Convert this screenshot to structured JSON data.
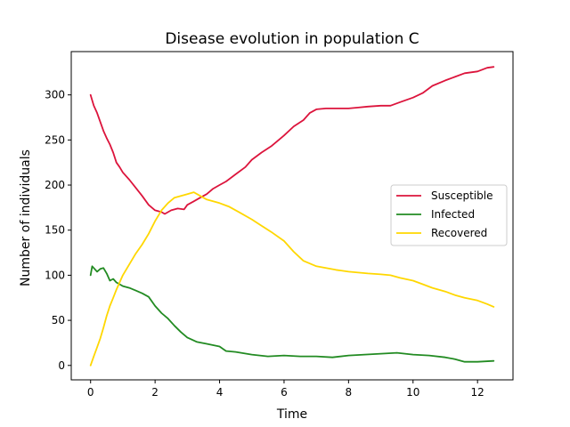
{
  "chart_data": {
    "type": "line",
    "title": "Disease evolution in population C",
    "xlabel": "Time",
    "ylabel": "Number of individuals",
    "xlim": [
      -0.6,
      13.1
    ],
    "ylim": [
      -16,
      348
    ],
    "xticks": [
      0,
      2,
      4,
      6,
      8,
      10,
      12
    ],
    "yticks": [
      0,
      50,
      100,
      150,
      200,
      250,
      300
    ],
    "grid": false,
    "legend_position": "center-right",
    "series": [
      {
        "name": "Susceptible",
        "color": "#dc143c",
        "x": [
          0,
          0.1,
          0.2,
          0.3,
          0.4,
          0.5,
          0.6,
          0.7,
          0.8,
          0.9,
          1.0,
          1.2,
          1.4,
          1.6,
          1.8,
          2.0,
          2.2,
          2.3,
          2.5,
          2.7,
          2.9,
          3.0,
          3.2,
          3.4,
          3.6,
          3.8,
          4.0,
          4.2,
          4.5,
          4.8,
          5.0,
          5.3,
          5.6,
          6.0,
          6.3,
          6.6,
          6.8,
          7.0,
          7.3,
          7.6,
          8.0,
          8.3,
          8.6,
          9.0,
          9.3,
          9.6,
          10.0,
          10.3,
          10.6,
          11.0,
          11.3,
          11.6,
          12.0,
          12.3,
          12.5
        ],
        "y": [
          300,
          288,
          280,
          270,
          260,
          252,
          245,
          236,
          225,
          220,
          214,
          206,
          197,
          188,
          178,
          172,
          170,
          168,
          172,
          174,
          173,
          178,
          182,
          186,
          190,
          196,
          200,
          204,
          212,
          220,
          228,
          236,
          243,
          255,
          265,
          272,
          280,
          284,
          285,
          285,
          285,
          286,
          287,
          288,
          288,
          292,
          297,
          302,
          310,
          316,
          320,
          324,
          326,
          330,
          331
        ]
      },
      {
        "name": "Infected",
        "color": "#228b22",
        "x": [
          0,
          0.05,
          0.1,
          0.2,
          0.3,
          0.4,
          0.5,
          0.6,
          0.7,
          0.8,
          0.9,
          1.0,
          1.2,
          1.4,
          1.6,
          1.8,
          2.0,
          2.2,
          2.4,
          2.6,
          2.8,
          3.0,
          3.3,
          3.6,
          4.0,
          4.2,
          4.5,
          5.0,
          5.5,
          6.0,
          6.5,
          7.0,
          7.5,
          8.0,
          8.5,
          9.0,
          9.5,
          10.0,
          10.5,
          11.0,
          11.3,
          11.6,
          12.0,
          12.5
        ],
        "y": [
          100,
          110,
          108,
          104,
          107,
          108,
          102,
          94,
          96,
          92,
          90,
          88,
          86,
          83,
          80,
          76,
          66,
          58,
          52,
          44,
          37,
          31,
          26,
          24,
          21,
          16,
          15,
          12,
          10,
          11,
          10,
          10,
          9,
          11,
          12,
          13,
          14,
          12,
          11,
          9,
          7,
          4,
          4,
          5
        ]
      },
      {
        "name": "Recovered",
        "color": "#ffd700",
        "x": [
          0,
          0.1,
          0.2,
          0.3,
          0.4,
          0.5,
          0.6,
          0.7,
          0.8,
          0.9,
          1.0,
          1.2,
          1.4,
          1.6,
          1.8,
          2.0,
          2.2,
          2.4,
          2.6,
          2.8,
          3.0,
          3.2,
          3.4,
          3.6,
          3.8,
          4.0,
          4.3,
          4.6,
          5.0,
          5.3,
          5.6,
          6.0,
          6.3,
          6.6,
          7.0,
          7.3,
          7.6,
          8.0,
          8.3,
          8.6,
          9.0,
          9.3,
          9.6,
          10.0,
          10.3,
          10.6,
          11.0,
          11.3,
          11.6,
          12.0,
          12.3,
          12.5
        ],
        "y": [
          0,
          10,
          20,
          30,
          42,
          55,
          66,
          75,
          84,
          92,
          100,
          112,
          124,
          134,
          146,
          160,
          172,
          180,
          186,
          188,
          190,
          192,
          188,
          184,
          182,
          180,
          176,
          170,
          162,
          155,
          148,
          138,
          126,
          116,
          110,
          108,
          106,
          104,
          103,
          102,
          101,
          100,
          97,
          94,
          90,
          86,
          82,
          78,
          75,
          72,
          68,
          65
        ]
      }
    ]
  }
}
